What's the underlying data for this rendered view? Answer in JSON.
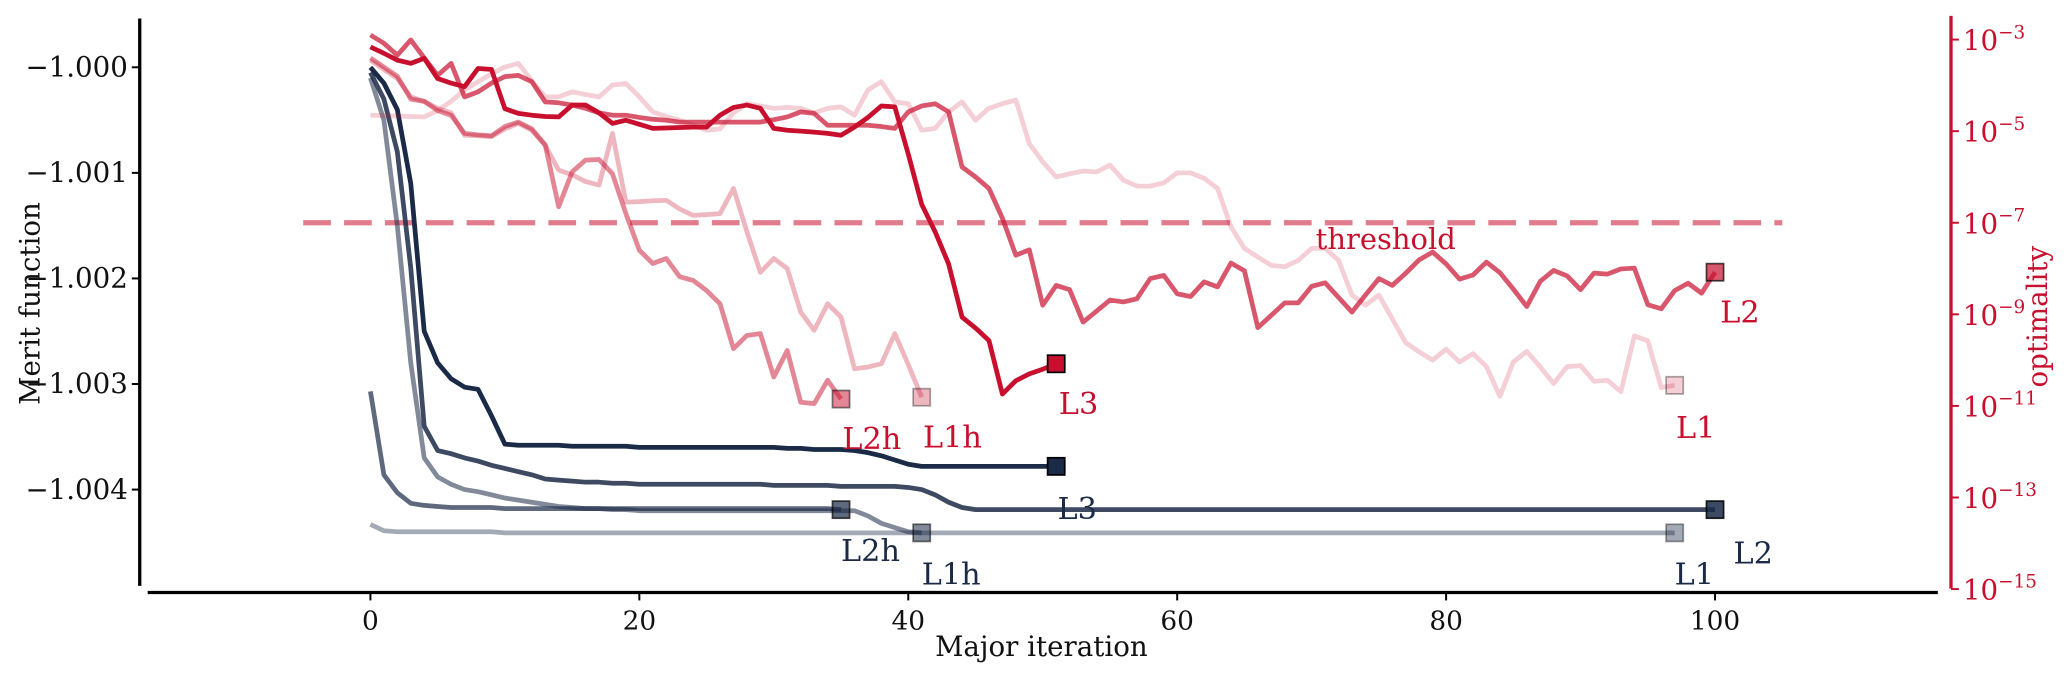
{
  "chart_data": {
    "type": "line",
    "xlabel": "Major iteration",
    "ylabel_left": "Merit function",
    "ylabel_right": "optimality",
    "yscale_right": "log",
    "x_ticks": [
      0,
      20,
      40,
      60,
      80,
      100
    ],
    "x_tick_labels": [
      "0",
      "20",
      "40",
      "60",
      "80",
      "100"
    ],
    "y_left_ticks": [
      -1.0,
      -1.001,
      -1.002,
      -1.003,
      -1.004
    ],
    "y_left_tick_labels": [
      "−1.000",
      "−1.001",
      "−1.002",
      "−1.003",
      "−1.004"
    ],
    "y_right_ticks_log10": [
      -3,
      -5,
      -7,
      -9,
      -11,
      -13,
      -15
    ],
    "y_right_tick_labels": [
      {
        "base": "10",
        "exp": "−3"
      },
      {
        "base": "10",
        "exp": "−5"
      },
      {
        "base": "10",
        "exp": "−7"
      },
      {
        "base": "10",
        "exp": "−9"
      },
      {
        "base": "10",
        "exp": "−11"
      },
      {
        "base": "10",
        "exp": "−13"
      },
      {
        "base": "10",
        "exp": "−15"
      }
    ],
    "xlim": [
      -16.6,
      116.6
    ],
    "ylim_left": [
      -1.00497,
      -0.99955
    ],
    "ylim_right_log10": [
      -15.1,
      -2.5
    ],
    "grid": false,
    "colors": {
      "merit": "#1b2a47",
      "optimality": "#c8102e"
    },
    "threshold": {
      "value": 1e-07,
      "label": "threshold",
      "x_range": [
        -5,
        105
      ]
    },
    "merit_series": [
      {
        "name": "L1",
        "label": "L1",
        "opacity": 0.4,
        "values": [
          -1.00433,
          -1.00439,
          -1.0044,
          -1.0044,
          -1.0044,
          -1.0044,
          -1.0044,
          -1.0044,
          -1.0044,
          -1.0044,
          -1.00441,
          -1.00441,
          -1.00441,
          -1.00441,
          -1.00441,
          -1.00441,
          -1.00441,
          -1.00441,
          -1.00441,
          -1.00441,
          -1.00441,
          -1.00441,
          -1.00441,
          -1.00441,
          -1.00441,
          -1.00441,
          -1.00441,
          -1.00441,
          -1.00441,
          -1.00441,
          -1.00441,
          -1.00441,
          -1.00441,
          -1.00441,
          -1.00441,
          -1.00441,
          -1.00441,
          -1.00441,
          -1.00441,
          -1.00441,
          -1.00441,
          -1.00441,
          -1.00441,
          -1.00441,
          -1.00441,
          -1.00441,
          -1.00441,
          -1.00441,
          -1.00441,
          -1.00441,
          -1.00441,
          -1.00441,
          -1.00441,
          -1.00441,
          -1.00441,
          -1.00441,
          -1.00441,
          -1.00441,
          -1.00441,
          -1.00441,
          -1.00441,
          -1.00441,
          -1.00441,
          -1.00441,
          -1.00441,
          -1.00441,
          -1.00441,
          -1.00441,
          -1.00441,
          -1.00441,
          -1.00441,
          -1.00441,
          -1.00441,
          -1.00441,
          -1.00441,
          -1.00441,
          -1.00441,
          -1.00441,
          -1.00441,
          -1.00441,
          -1.00441,
          -1.00441,
          -1.00441,
          -1.00441,
          -1.00441,
          -1.00441,
          -1.00441,
          -1.00441,
          -1.00441,
          -1.00441,
          -1.00441,
          -1.00441,
          -1.00441,
          -1.00441,
          -1.00441,
          -1.00441,
          -1.00441,
          -1.00441
        ]
      },
      {
        "name": "L1h",
        "label": "L1h",
        "opacity": 0.55,
        "values": [
          -1.0001,
          -1.0005,
          -1.0015,
          -1.0028,
          -1.0037,
          -1.00388,
          -1.00395,
          -1.004,
          -1.00402,
          -1.00405,
          -1.00408,
          -1.0041,
          -1.00412,
          -1.00414,
          -1.00416,
          -1.00417,
          -1.00418,
          -1.00418,
          -1.00419,
          -1.00419,
          -1.0042,
          -1.0042,
          -1.0042,
          -1.0042,
          -1.0042,
          -1.0042,
          -1.0042,
          -1.0042,
          -1.0042,
          -1.0042,
          -1.0042,
          -1.0042,
          -1.0042,
          -1.0042,
          -1.0042,
          -1.0042,
          -1.0042,
          -1.00425,
          -1.00432,
          -1.00436,
          -1.0044,
          -1.00441
        ]
      },
      {
        "name": "L2h",
        "label": "L2h",
        "opacity": 0.7,
        "values": [
          -1.00307,
          -1.00386,
          -1.00403,
          -1.00413,
          -1.00415,
          -1.00416,
          -1.00417,
          -1.00417,
          -1.00417,
          -1.00417,
          -1.00418,
          -1.00418,
          -1.00418,
          -1.00418,
          -1.00418,
          -1.00418,
          -1.00418,
          -1.00418,
          -1.00418,
          -1.00418,
          -1.00418,
          -1.00418,
          -1.00418,
          -1.00418,
          -1.00418,
          -1.00418,
          -1.00418,
          -1.00418,
          -1.00418,
          -1.00418,
          -1.00418,
          -1.00418,
          -1.00418,
          -1.00418,
          -1.00418,
          -1.00419
        ]
      },
      {
        "name": "L2",
        "label": "L2",
        "opacity": 0.85,
        "values": [
          -1.00005,
          -1.0003,
          -1.0008,
          -1.0019,
          -1.0034,
          -1.00363,
          -1.00366,
          -1.0037,
          -1.00373,
          -1.00377,
          -1.0038,
          -1.00383,
          -1.00386,
          -1.0039,
          -1.00391,
          -1.00392,
          -1.00393,
          -1.00393,
          -1.00394,
          -1.00394,
          -1.00395,
          -1.00395,
          -1.00395,
          -1.00395,
          -1.00395,
          -1.00395,
          -1.00395,
          -1.00395,
          -1.00395,
          -1.00395,
          -1.00396,
          -1.00396,
          -1.00396,
          -1.00396,
          -1.00396,
          -1.00397,
          -1.00397,
          -1.00397,
          -1.00397,
          -1.00397,
          -1.00398,
          -1.004,
          -1.00405,
          -1.00412,
          -1.00417,
          -1.00419,
          -1.00419,
          -1.00419,
          -1.00419,
          -1.00419,
          -1.00419,
          -1.00419,
          -1.00419,
          -1.00419,
          -1.00419,
          -1.00419,
          -1.00419,
          -1.00419,
          -1.00419,
          -1.00419,
          -1.00419,
          -1.00419,
          -1.00419,
          -1.00419,
          -1.00419,
          -1.00419,
          -1.00419,
          -1.00419,
          -1.00419,
          -1.00419,
          -1.00419,
          -1.00419,
          -1.00419,
          -1.00419,
          -1.00419,
          -1.00419,
          -1.00419,
          -1.00419,
          -1.00419,
          -1.00419,
          -1.00419,
          -1.00419,
          -1.00419,
          -1.00419,
          -1.00419,
          -1.00419,
          -1.00419,
          -1.00419,
          -1.00419,
          -1.00419,
          -1.00419,
          -1.00419,
          -1.00419,
          -1.00419,
          -1.00419,
          -1.00419,
          -1.00419,
          -1.00419,
          -1.00419,
          -1.00419,
          -1.00419
        ]
      },
      {
        "name": "L3",
        "label": "L3",
        "opacity": 1.0,
        "values": [
          -1.0,
          -1.00015,
          -1.0004,
          -1.0011,
          -1.0025,
          -1.0028,
          -1.00295,
          -1.00303,
          -1.00305,
          -1.0033,
          -1.00357,
          -1.00358,
          -1.00358,
          -1.00358,
          -1.00358,
          -1.00359,
          -1.00359,
          -1.00359,
          -1.00359,
          -1.00359,
          -1.0036,
          -1.0036,
          -1.0036,
          -1.0036,
          -1.0036,
          -1.0036,
          -1.0036,
          -1.0036,
          -1.0036,
          -1.0036,
          -1.0036,
          -1.00361,
          -1.00361,
          -1.00362,
          -1.00362,
          -1.00362,
          -1.00363,
          -1.00365,
          -1.00368,
          -1.00372,
          -1.00376,
          -1.00378,
          -1.00378,
          -1.00378,
          -1.00378,
          -1.00378,
          -1.00378,
          -1.00378,
          -1.00378,
          -1.00378,
          -1.00378,
          -1.00378
        ]
      }
    ],
    "optimality_series_log10": [
      {
        "name": "L1",
        "label": "L1",
        "opacity": 0.2,
        "values": [
          -4.65,
          -4.66,
          -4.67,
          -4.68,
          -4.69,
          -4.55,
          -4.35,
          -4.1,
          -3.92,
          -3.75,
          -3.6,
          -3.52,
          -3.9,
          -4.25,
          -4.25,
          -4.14,
          -4.2,
          -4.25,
          -3.99,
          -3.96,
          -4.25,
          -4.58,
          -4.68,
          -4.76,
          -4.87,
          -4.98,
          -4.95,
          -4.6,
          -4.4,
          -4.45,
          -4.5,
          -4.48,
          -4.5,
          -4.6,
          -4.5,
          -4.47,
          -4.65,
          -4.1,
          -3.92,
          -4.36,
          -4.4,
          -4.98,
          -4.94,
          -4.58,
          -4.36,
          -4.76,
          -4.5,
          -4.4,
          -4.32,
          -5.27,
          -5.67,
          -6.0,
          -5.93,
          -5.87,
          -5.89,
          -5.74,
          -6.07,
          -6.2,
          -6.2,
          -6.13,
          -5.91,
          -5.91,
          -6.03,
          -6.25,
          -7.09,
          -7.56,
          -7.75,
          -7.93,
          -7.96,
          -7.82,
          -7.56,
          -7.56,
          -7.82,
          -8.58,
          -8.8,
          -8.58,
          -9.1,
          -9.62,
          -9.82,
          -10.0,
          -9.76,
          -10.04,
          -9.86,
          -10.14,
          -10.79,
          -10.04,
          -9.81,
          -10.15,
          -10.51,
          -10.14,
          -10.12,
          -10.46,
          -10.44,
          -10.69,
          -9.47,
          -9.58,
          -10.6,
          -10.55
        ]
      },
      {
        "name": "L1h",
        "label": "L1h",
        "opacity": 0.3,
        "values": [
          -3.45,
          -3.65,
          -3.85,
          -4.25,
          -4.35,
          -4.5,
          -4.6,
          -5.09,
          -5.1,
          -5.12,
          -4.95,
          -4.83,
          -4.98,
          -5.31,
          -5.85,
          -5.95,
          -6.1,
          -6.18,
          -5.05,
          -6.55,
          -6.54,
          -6.52,
          -6.51,
          -6.7,
          -6.84,
          -6.82,
          -6.8,
          -6.25,
          -7.2,
          -8.08,
          -7.78,
          -8.0,
          -8.95,
          -9.35,
          -8.77,
          -9.06,
          -10.19,
          -10.15,
          -10.08,
          -9.42,
          -10.1,
          -10.81
        ]
      },
      {
        "name": "L2h",
        "label": "L2h",
        "opacity": 0.5,
        "values": [
          -3.4,
          -3.6,
          -3.8,
          -4.3,
          -4.35,
          -4.55,
          -4.65,
          -5.05,
          -5.08,
          -5.1,
          -4.9,
          -4.8,
          -4.95,
          -5.3,
          -6.65,
          -5.89,
          -5.63,
          -5.62,
          -5.93,
          -6.8,
          -7.6,
          -7.89,
          -7.78,
          -8.18,
          -8.26,
          -8.48,
          -8.77,
          -9.75,
          -9.46,
          -9.42,
          -10.37,
          -9.79,
          -10.92,
          -10.95,
          -10.44,
          -10.85
        ]
      },
      {
        "name": "L2",
        "label": "L2",
        "opacity": 0.7,
        "values": [
          -2.9,
          -3.08,
          -3.34,
          -3.01,
          -3.4,
          -3.78,
          -3.52,
          -4.25,
          -4.14,
          -3.95,
          -3.81,
          -3.78,
          -3.92,
          -4.36,
          -4.38,
          -4.43,
          -4.5,
          -4.6,
          -4.65,
          -4.65,
          -4.7,
          -4.74,
          -4.76,
          -4.8,
          -4.8,
          -4.8,
          -4.8,
          -4.8,
          -4.8,
          -4.8,
          -4.75,
          -4.69,
          -4.58,
          -4.61,
          -4.87,
          -4.87,
          -4.87,
          -4.87,
          -4.9,
          -4.94,
          -4.58,
          -4.45,
          -4.4,
          -4.58,
          -5.78,
          -6.0,
          -6.25,
          -6.9,
          -7.71,
          -7.59,
          -8.8,
          -8.37,
          -8.46,
          -9.17,
          -8.93,
          -8.69,
          -8.73,
          -8.66,
          -8.22,
          -8.15,
          -8.55,
          -8.61,
          -8.29,
          -8.4,
          -7.88,
          -8.05,
          -9.29,
          -9.02,
          -8.75,
          -8.75,
          -8.39,
          -8.31,
          -8.63,
          -8.95,
          -8.58,
          -8.22,
          -8.37,
          -8.1,
          -7.81,
          -7.64,
          -7.9,
          -8.23,
          -8.14,
          -7.86,
          -8.09,
          -8.45,
          -8.83,
          -8.28,
          -8.04,
          -8.16,
          -8.46,
          -8.1,
          -8.12,
          -8.01,
          -7.99,
          -8.79,
          -8.88,
          -8.48,
          -8.32,
          -8.54,
          -8.08
        ]
      },
      {
        "name": "L3",
        "label": "L3",
        "opacity": 1.0,
        "values": [
          -3.16,
          -3.3,
          -3.45,
          -3.52,
          -3.41,
          -3.85,
          -3.95,
          -4.03,
          -3.63,
          -3.65,
          -4.51,
          -4.61,
          -4.65,
          -4.68,
          -4.69,
          -4.43,
          -4.43,
          -4.6,
          -4.83,
          -4.76,
          -4.85,
          -4.94,
          -4.93,
          -4.92,
          -4.91,
          -4.91,
          -4.65,
          -4.48,
          -4.43,
          -4.5,
          -4.94,
          -4.98,
          -5.0,
          -5.02,
          -5.05,
          -5.09,
          -4.91,
          -4.7,
          -4.45,
          -4.47,
          -5.5,
          -6.6,
          -7.2,
          -7.9,
          -9.06,
          -9.3,
          -9.57,
          -10.74,
          -10.45,
          -10.3,
          -10.2,
          -10.08
        ]
      }
    ]
  }
}
